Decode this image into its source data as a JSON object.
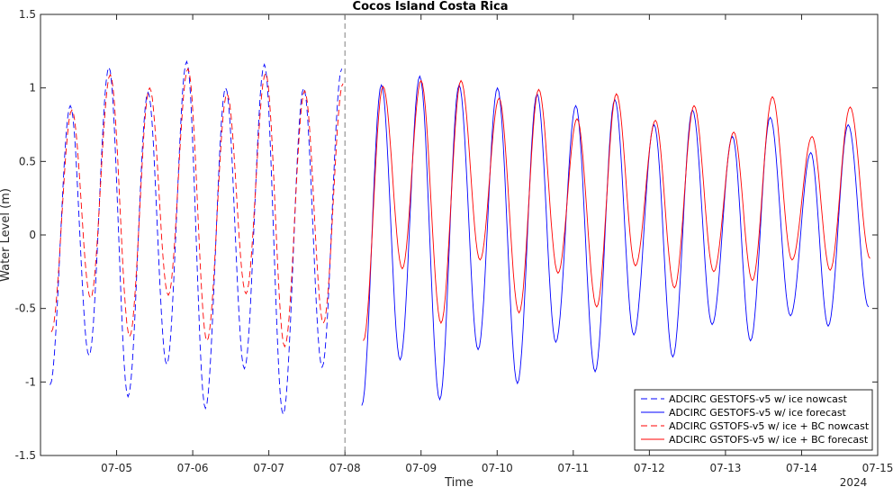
{
  "chart_data": {
    "type": "line",
    "title": "Cocos Island Costa Rica",
    "xlabel": "Time",
    "ylabel": "Water Level (m)",
    "year_label": "2024",
    "x_range_days": [
      "2024-07-04T00:00",
      "2024-07-15T00:00"
    ],
    "x_ticks": [
      "07-05",
      "07-06",
      "07-07",
      "07-08",
      "07-09",
      "07-10",
      "07-11",
      "07-12",
      "07-13",
      "07-14",
      "07-15"
    ],
    "ylim": [
      -1.5,
      1.5
    ],
    "y_ticks": [
      "-1.5",
      "-1",
      "-0.5",
      "0",
      "0.5",
      "1",
      "1.5"
    ],
    "nowcast_forecast_boundary": "2024-07-08T00:00",
    "legend_position": "bottom-right",
    "grid": false,
    "series": [
      {
        "name": "ADCIRC GESTOFS-v5 w/ ice nowcast",
        "color": "#0000ff",
        "style": "dashed",
        "high_times": [
          "07-04 09:24",
          "07-04 21:36",
          "07-05 09:54",
          "07-05 22:06",
          "07-06 10:24",
          "07-06 22:36",
          "07-07 11:00",
          "07-07 23:00"
        ],
        "high_values": [
          0.88,
          1.14,
          0.97,
          1.18,
          1.0,
          1.16,
          1.0,
          1.13
        ],
        "low_times": [
          "07-04 03:00",
          "07-04 15:18",
          "07-05 03:36",
          "07-05 15:48",
          "07-06 04:00",
          "07-06 16:18",
          "07-07 04:30",
          "07-07 16:48"
        ],
        "low_values": [
          -1.02,
          -0.82,
          -1.1,
          -0.88,
          -1.18,
          -0.91,
          -1.22,
          -0.9
        ]
      },
      {
        "name": "ADCIRC GESTOFS-v5 w/ ice forecast",
        "color": "#0000ff",
        "style": "solid",
        "high_times": [
          "07-08 11:30",
          "07-08 23:36",
          "07-09 12:00",
          "07-10 00:06",
          "07-10 12:36",
          "07-11 00:48",
          "07-11 13:06",
          "07-12 01:30",
          "07-12 13:36",
          "07-13 02:12",
          "07-13 14:06",
          "07-14 02:54",
          "07-14 14:42"
        ],
        "high_values": [
          1.02,
          1.08,
          1.02,
          1.0,
          0.96,
          0.88,
          0.92,
          0.75,
          0.85,
          0.67,
          0.8,
          0.56,
          0.75
        ],
        "low_times": [
          "07-08 05:18",
          "07-08 17:24",
          "07-09 05:54",
          "07-09 18:00",
          "07-10 06:24",
          "07-10 18:30",
          "07-11 06:54",
          "07-11 19:06",
          "07-12 07:24",
          "07-12 19:48",
          "07-13 07:54",
          "07-13 20:30",
          "07-14 08:24",
          "07-14 21:06"
        ],
        "low_values": [
          -1.16,
          -0.85,
          -1.12,
          -0.78,
          -1.01,
          -0.73,
          -0.93,
          -0.68,
          -0.83,
          -0.61,
          -0.72,
          -0.55,
          -0.62,
          -0.49
        ]
      },
      {
        "name": "ADCIRC GSTOFS-v5 w/ ice + BC nowcast",
        "color": "#ff0000",
        "style": "dashed",
        "high_times": [
          "07-04 09:54",
          "07-04 22:00",
          "07-05 10:24",
          "07-05 22:30",
          "07-06 10:48",
          "07-06 23:00",
          "07-07 11:18",
          "07-07 23:24"
        ],
        "high_values": [
          0.85,
          1.09,
          1.0,
          1.13,
          0.96,
          1.1,
          0.98,
          1.03
        ],
        "low_times": [
          "07-04 03:24",
          "07-04 15:48",
          "07-05 04:06",
          "07-05 16:18",
          "07-06 04:30",
          "07-06 16:48",
          "07-07 05:00",
          "07-07 17:12"
        ],
        "low_values": [
          -0.66,
          -0.43,
          -0.69,
          -0.41,
          -0.72,
          -0.4,
          -0.76,
          -0.6
        ]
      },
      {
        "name": "ADCIRC GSTOFS-v5 w/ ice + BC forecast",
        "color": "#ff0000",
        "style": "solid",
        "high_times": [
          "07-08 12:00",
          "07-09 00:00",
          "07-09 12:36",
          "07-10 00:36",
          "07-10 13:06",
          "07-11 01:12",
          "07-11 13:36",
          "07-12 01:54",
          "07-12 14:06",
          "07-13 02:36",
          "07-13 14:48",
          "07-14 03:18",
          "07-14 15:18"
        ],
        "high_values": [
          1.01,
          1.05,
          1.05,
          0.93,
          0.99,
          0.79,
          0.96,
          0.78,
          0.88,
          0.7,
          0.94,
          0.67,
          0.87
        ],
        "low_times": [
          "07-08 05:48",
          "07-08 18:06",
          "07-09 06:18",
          "07-09 18:36",
          "07-10 06:54",
          "07-10 19:12",
          "07-11 07:24",
          "07-11 19:36",
          "07-12 07:54",
          "07-12 20:18",
          "07-13 08:30",
          "07-13 21:00",
          "07-14 09:00",
          "07-14 21:36"
        ],
        "low_values": [
          -0.72,
          -0.23,
          -0.6,
          -0.17,
          -0.53,
          -0.26,
          -0.49,
          -0.21,
          -0.36,
          -0.25,
          -0.31,
          -0.17,
          -0.24,
          -0.16
        ]
      }
    ]
  }
}
